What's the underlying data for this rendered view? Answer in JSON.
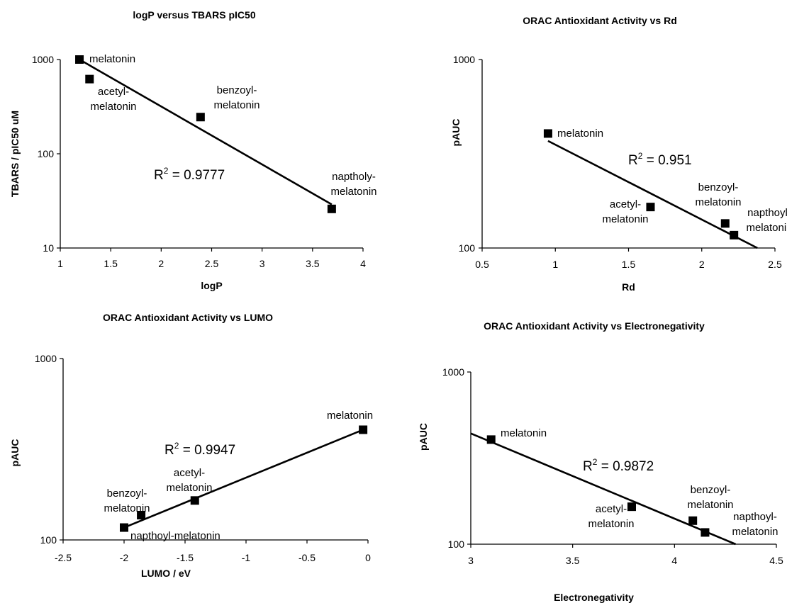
{
  "chart_data": [
    {
      "type": "scatter",
      "title": "logP versus TBARS pIC50",
      "xlabel": "logP",
      "ylabel": "TBARS / pIC50 uM",
      "xlim": [
        1,
        4
      ],
      "ylim": [
        10,
        1000
      ],
      "y_scale": "log",
      "xticks": [
        1,
        1.5,
        2,
        2.5,
        3,
        3.5,
        4
      ],
      "xtick_labels": [
        "1",
        "1.5",
        "2",
        "2.5",
        "3",
        "3.5",
        "4"
      ],
      "yticks": [
        10,
        100,
        1000
      ],
      "ytick_labels": [
        "10",
        "100",
        "1000"
      ],
      "points": [
        {
          "x": 1.19,
          "y": 1000,
          "label": [
            "melatonin"
          ]
        },
        {
          "x": 1.29,
          "y": 620,
          "label": [
            "acetyl-",
            "melatonin"
          ]
        },
        {
          "x": 2.39,
          "y": 245,
          "label": [
            "benzoyl-",
            "melatonin"
          ]
        },
        {
          "x": 3.69,
          "y": 26,
          "label": [
            "naptholy-",
            "melatonin"
          ]
        }
      ],
      "trendline": {
        "x": [
          1.19,
          3.69
        ],
        "y": [
          1000,
          29
        ],
        "r2": "0.9777"
      }
    },
    {
      "type": "scatter",
      "title": "ORAC Antioxidant Activity vs Rd",
      "xlabel": "Rd",
      "ylabel": "pAUC",
      "xlim": [
        0.5,
        2.5
      ],
      "ylim": [
        100,
        1000
      ],
      "y_scale": "log",
      "xticks": [
        0.5,
        1,
        1.5,
        2,
        2.5
      ],
      "xtick_labels": [
        "0.5",
        "1",
        "1.5",
        "2",
        "2.5"
      ],
      "yticks": [
        100,
        1000
      ],
      "ytick_labels": [
        "100",
        "1000"
      ],
      "points": [
        {
          "x": 0.95,
          "y": 405,
          "label": [
            "melatonin"
          ]
        },
        {
          "x": 1.65,
          "y": 165,
          "label": [
            "acetyl-",
            "melatonin"
          ]
        },
        {
          "x": 2.16,
          "y": 135,
          "label": [
            "benzoyl-",
            "melatonin"
          ]
        },
        {
          "x": 2.22,
          "y": 117,
          "label": [
            "napthoyl-",
            "melatonin"
          ]
        }
      ],
      "trendline": {
        "x": [
          0.95,
          2.38
        ],
        "y": [
          370,
          100
        ],
        "r2": "0.951"
      }
    },
    {
      "type": "scatter",
      "title": "ORAC Antioxidant Activity vs LUMO",
      "xlabel": "LUMO / eV",
      "ylabel": "pAUC",
      "xlim": [
        -2.5,
        0
      ],
      "ylim": [
        100,
        1000
      ],
      "y_scale": "log",
      "xticks": [
        -2.5,
        -2,
        -1.5,
        -1,
        -0.5,
        0
      ],
      "xtick_labels": [
        "-2.5",
        "-2",
        "-1.5",
        "-1",
        "-0.5",
        "0"
      ],
      "yticks": [
        100,
        1000
      ],
      "ytick_labels": [
        "100",
        "1000"
      ],
      "points": [
        {
          "x": -0.04,
          "y": 405,
          "label": [
            "melatonin"
          ]
        },
        {
          "x": -1.42,
          "y": 165,
          "label": [
            "acetyl-",
            "melatonin"
          ]
        },
        {
          "x": -1.86,
          "y": 137,
          "label": [
            "benzoyl-",
            "melatonin"
          ]
        },
        {
          "x": -2.0,
          "y": 117,
          "label": [
            "napthoyl-melatonin"
          ]
        }
      ],
      "trendline": {
        "x": [
          -2.0,
          -0.04
        ],
        "y": [
          117,
          405
        ],
        "r2": "0.9947"
      }
    },
    {
      "type": "scatter",
      "title": "ORAC Antioxidant Activity vs Electronegativity",
      "xlabel": "Electronegativity",
      "ylabel": "pAUC",
      "xlim": [
        3,
        4.5
      ],
      "ylim": [
        100,
        1000
      ],
      "y_scale": "log",
      "xticks": [
        3,
        3.5,
        4,
        4.5
      ],
      "xtick_labels": [
        "3",
        "3.5",
        "4",
        "4.5"
      ],
      "yticks": [
        100,
        1000
      ],
      "ytick_labels": [
        "100",
        "1000"
      ],
      "points": [
        {
          "x": 3.1,
          "y": 405,
          "label": [
            "melatonin"
          ]
        },
        {
          "x": 3.79,
          "y": 165,
          "label": [
            "acetyl-",
            "melatonin"
          ]
        },
        {
          "x": 4.09,
          "y": 137,
          "label": [
            "benzoyl-",
            "melatonin"
          ]
        },
        {
          "x": 4.15,
          "y": 117,
          "label": [
            "napthoyl-",
            "melatonin"
          ]
        }
      ],
      "trendline": {
        "x": [
          3.0,
          4.3
        ],
        "y": [
          440,
          100
        ],
        "r2": "0.9872"
      }
    }
  ]
}
